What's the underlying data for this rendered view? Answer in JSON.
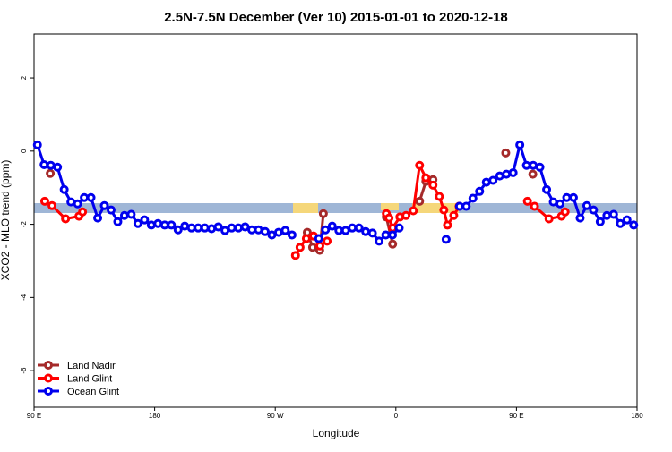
{
  "chart_data": {
    "type": "line",
    "title": "2.5N-7.5N December (Ver 10)   2015-01-01 to 2020-12-18",
    "x_label": "Longitude",
    "y_label": "XCO2 - MLO trend (ppm)",
    "xlim": [
      90,
      540
    ],
    "xticks": [
      {
        "value": 90,
        "label": "90 E"
      },
      {
        "value": 180,
        "label": "180"
      },
      {
        "value": 270,
        "label": "90 W"
      },
      {
        "value": 360,
        "label": "0"
      },
      {
        "value": 450,
        "label": "90 E"
      },
      {
        "value": 540,
        "label": "180"
      }
    ],
    "ylim": [
      -7,
      3.2
    ],
    "yticks": [
      -6,
      -4,
      -2,
      0,
      2
    ],
    "legend": "bottom-left",
    "series": [
      {
        "name": "Land Nadir",
        "color": "#a52a2a",
        "x": [
          102.1,
          200,
          293.9,
          297.9,
          303.2,
          305.9,
          330,
          352.9,
          357.6,
          370,
          377.7,
          382.4,
          387.7,
          420,
          442,
          450,
          462.2
        ],
        "values": [
          -0.61,
          null,
          -2.22,
          -2.63,
          -2.71,
          -1.71,
          null,
          -1.8,
          -2.54,
          null,
          -1.37,
          -0.83,
          -0.78,
          null,
          -0.05,
          null,
          -0.63
        ]
      },
      {
        "name": "Land Glint",
        "color": "#ff0000",
        "x": [
          98,
          103.4,
          113.5,
          123.5,
          126.2,
          200,
          285.1,
          288.5,
          293.2,
          298.6,
          303.3,
          308.7,
          330,
          352.9,
          354.9,
          357.6,
          363,
          367.6,
          373,
          377.7,
          382.4,
          387.7,
          392.4,
          395.8,
          398.5,
          403.2,
          407.2,
          430,
          458.2,
          463.5,
          474.3,
          483.6,
          486.3
        ],
        "values": [
          -1.37,
          -1.49,
          -1.85,
          -1.78,
          -1.66,
          null,
          -2.85,
          -2.63,
          -2.39,
          -2.32,
          -2.59,
          -2.46,
          null,
          -1.71,
          -1.83,
          -2.1,
          -1.8,
          -1.76,
          -1.63,
          -0.39,
          -0.73,
          -0.93,
          -1.24,
          -1.61,
          -2.02,
          -1.76,
          -1.51,
          null,
          -1.37,
          -1.51,
          -1.85,
          -1.78,
          -1.66
        ]
      },
      {
        "name": "Ocean Glint",
        "color": "#0000ee",
        "x": [
          92.5,
          97.5,
          102.5,
          107.5,
          112.5,
          117.5,
          122.5,
          127.5,
          132.5,
          137.5,
          142.5,
          147.5,
          152.5,
          157.5,
          162.5,
          167.5,
          172.5,
          177.5,
          182.5,
          187.5,
          192.5,
          197.5,
          202.5,
          207.5,
          212.5,
          217.5,
          222.5,
          227.5,
          232.5,
          237.5,
          242.5,
          247.5,
          252.5,
          257.5,
          262.5,
          267.5,
          272.5,
          277.5,
          282.5,
          292.5,
          302.5,
          307.5,
          312.5,
          317.5,
          322.5,
          327.5,
          332.5,
          337.5,
          342.5,
          347.5,
          352.5,
          357.5,
          362.5,
          380,
          397.5,
          402.5,
          407.5,
          412.5,
          417.5,
          422.5,
          427.5,
          432.5,
          437.5,
          442.5,
          447.5,
          452.5,
          457.5,
          462.5,
          467.5,
          472.5,
          477.5,
          482.5,
          487.5,
          492.5,
          497.5,
          502.5,
          507.5,
          512.5,
          517.5,
          522.5,
          527.5,
          532.5,
          537.5
        ],
        "values": [
          0.17,
          -0.37,
          -0.39,
          -0.44,
          -1.05,
          -1.39,
          -1.44,
          -1.27,
          -1.27,
          -1.83,
          -1.49,
          -1.61,
          -1.93,
          -1.76,
          -1.73,
          -1.98,
          -1.88,
          -2.02,
          -1.98,
          -2.02,
          -2.02,
          -2.15,
          -2.05,
          -2.1,
          -2.1,
          -2.1,
          -2.12,
          -2.07,
          -2.17,
          -2.1,
          -2.1,
          -2.07,
          -2.15,
          -2.15,
          -2.2,
          -2.29,
          -2.22,
          -2.17,
          -2.29,
          null,
          -2.39,
          -2.15,
          -2.05,
          -2.17,
          -2.17,
          -2.1,
          -2.1,
          -2.2,
          -2.24,
          -2.46,
          -2.29,
          -2.29,
          -2.1,
          null,
          -2.41,
          null,
          -1.51,
          -1.51,
          -1.29,
          -1.1,
          -0.85,
          -0.8,
          -0.68,
          -0.63,
          -0.59,
          0.17,
          -0.39,
          -0.39,
          -0.44,
          -1.05,
          -1.39,
          -1.44,
          -1.27,
          -1.27,
          -1.83,
          -1.49,
          -1.61,
          -1.93,
          -1.76,
          -1.73,
          -1.98,
          -1.88,
          -2.02
        ]
      }
    ]
  }
}
